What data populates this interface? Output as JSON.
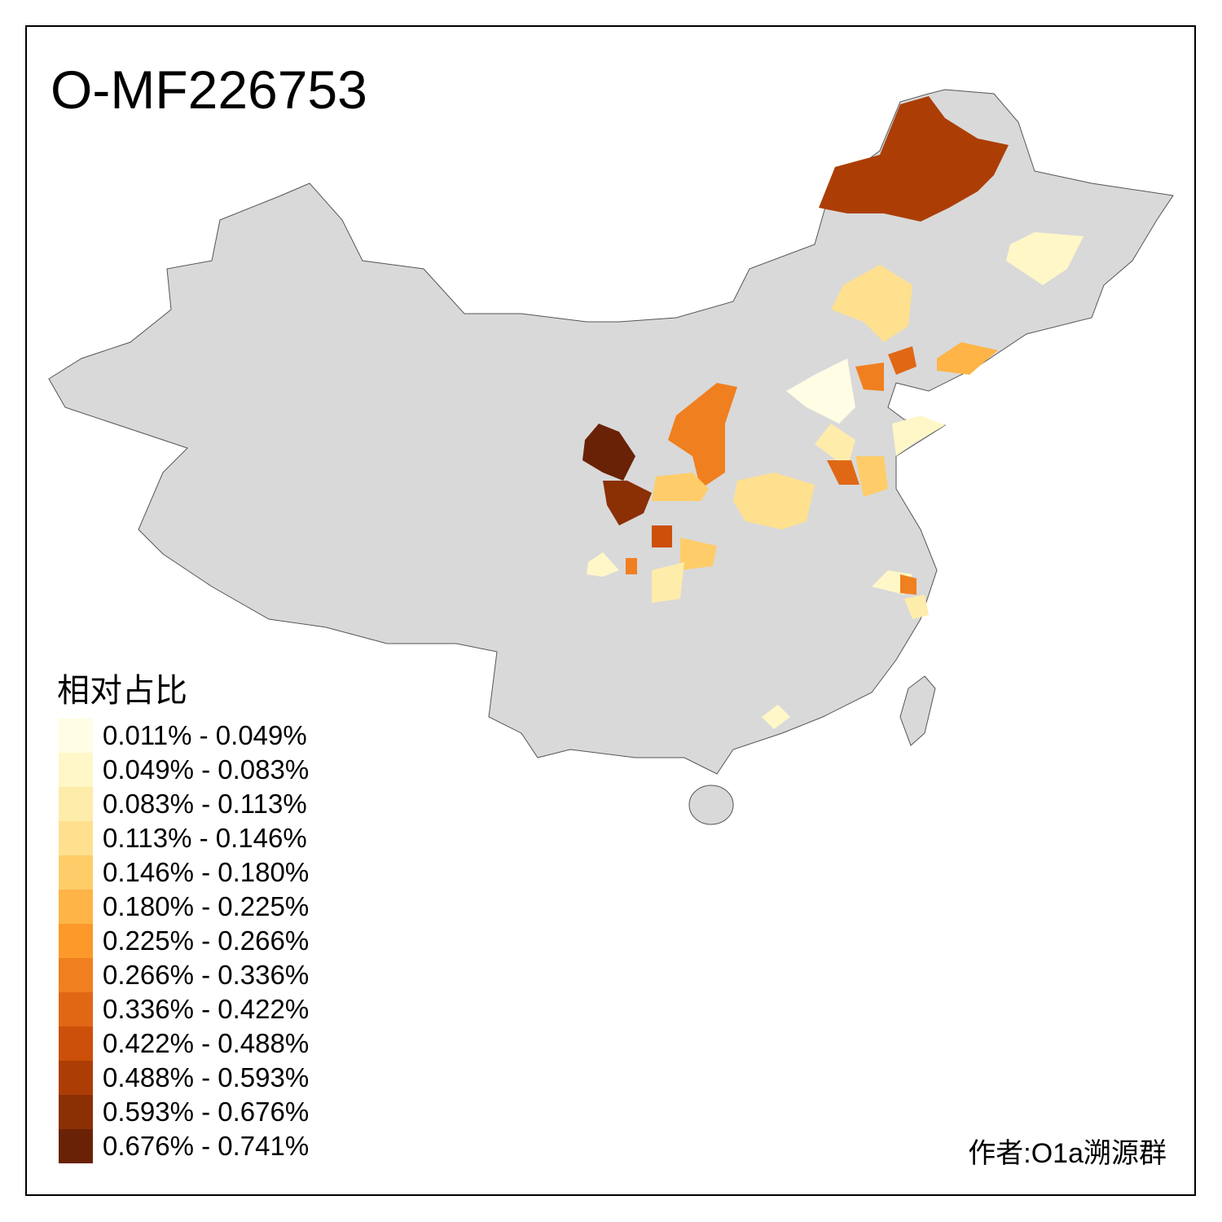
{
  "title": "O-MF226753",
  "legend": {
    "title": "相对占比",
    "items": [
      {
        "label": "0.011% - 0.049%",
        "color": "#fffde4"
      },
      {
        "label": "0.049% - 0.083%",
        "color": "#fff7c8"
      },
      {
        "label": "0.083% - 0.113%",
        "color": "#feecab"
      },
      {
        "label": "0.113% - 0.146%",
        "color": "#fee08f"
      },
      {
        "label": "0.146% - 0.180%",
        "color": "#fecd69"
      },
      {
        "label": "0.180% - 0.225%",
        "color": "#feb446"
      },
      {
        "label": "0.225% - 0.266%",
        "color": "#fd982a"
      },
      {
        "label": "0.266% - 0.336%",
        "color": "#f07f1f"
      },
      {
        "label": "0.336% - 0.422%",
        "color": "#e06815"
      },
      {
        "label": "0.422% - 0.488%",
        "color": "#cc5009"
      },
      {
        "label": "0.488% - 0.593%",
        "color": "#ac3e05"
      },
      {
        "label": "0.593% - 0.676%",
        "color": "#8b2f05"
      },
      {
        "label": "0.676% - 0.741%",
        "color": "#6a2206"
      }
    ]
  },
  "author": "作者:O1a溯源群",
  "colors": {
    "base": "#d9d9d9",
    "border": "#555555"
  }
}
